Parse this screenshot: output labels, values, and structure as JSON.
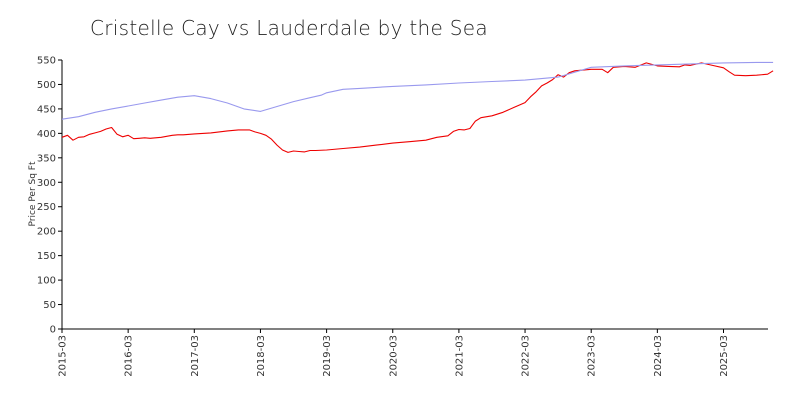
{
  "chart_data": {
    "type": "line",
    "title": "Cristelle Cay vs Lauderdale by the Sea",
    "xlabel": "",
    "ylabel": "Price Per Sq Ft",
    "ylim": [
      0,
      550
    ],
    "y_ticks": [
      0,
      50,
      100,
      150,
      200,
      250,
      300,
      350,
      400,
      450,
      500,
      550
    ],
    "x_ticks": [
      "2015-03",
      "2016-03",
      "2017-03",
      "2018-03",
      "2019-03",
      "2020-03",
      "2021-03",
      "2022-03",
      "2023-03",
      "2024-03",
      "2025-03"
    ],
    "x_range": [
      "2015-03",
      "2025-12"
    ],
    "grid": false,
    "legend": "none",
    "series": [
      {
        "color": "#ee0000",
        "points": [
          [
            "2015-03",
            392
          ],
          [
            "2015-04",
            396
          ],
          [
            "2015-05",
            386
          ],
          [
            "2015-06",
            392
          ],
          [
            "2015-07",
            393
          ],
          [
            "2015-08",
            398
          ],
          [
            "2015-09",
            401
          ],
          [
            "2015-10",
            404
          ],
          [
            "2015-11",
            409
          ],
          [
            "2015-12",
            412
          ],
          [
            "2016-01",
            398
          ],
          [
            "2016-02",
            393
          ],
          [
            "2016-03",
            396
          ],
          [
            "2016-04",
            389
          ],
          [
            "2016-05",
            390
          ],
          [
            "2016-06",
            391
          ],
          [
            "2016-07",
            390
          ],
          [
            "2016-08",
            391
          ],
          [
            "2016-09",
            392
          ],
          [
            "2016-10",
            394
          ],
          [
            "2016-11",
            396
          ],
          [
            "2016-12",
            397
          ],
          [
            "2017-01",
            397
          ],
          [
            "2017-03",
            399
          ],
          [
            "2017-06",
            401
          ],
          [
            "2017-09",
            405
          ],
          [
            "2017-11",
            407
          ],
          [
            "2018-01",
            407
          ],
          [
            "2018-02",
            403
          ],
          [
            "2018-03",
            400
          ],
          [
            "2018-04",
            396
          ],
          [
            "2018-05",
            388
          ],
          [
            "2018-06",
            376
          ],
          [
            "2018-07",
            366
          ],
          [
            "2018-08",
            361
          ],
          [
            "2018-09",
            364
          ],
          [
            "2018-10",
            363
          ],
          [
            "2018-11",
            362
          ],
          [
            "2018-12",
            365
          ],
          [
            "2019-01",
            365
          ],
          [
            "2019-03",
            366
          ],
          [
            "2019-06",
            369
          ],
          [
            "2019-09",
            372
          ],
          [
            "2019-12",
            376
          ],
          [
            "2020-03",
            380
          ],
          [
            "2020-06",
            383
          ],
          [
            "2020-09",
            386
          ],
          [
            "2020-11",
            392
          ],
          [
            "2021-01",
            395
          ],
          [
            "2021-02",
            404
          ],
          [
            "2021-03",
            408
          ],
          [
            "2021-04",
            407
          ],
          [
            "2021-05",
            410
          ],
          [
            "2021-06",
            425
          ],
          [
            "2021-07",
            432
          ],
          [
            "2021-09",
            436
          ],
          [
            "2021-11",
            443
          ],
          [
            "2022-01",
            453
          ],
          [
            "2022-02",
            458
          ],
          [
            "2022-03",
            463
          ],
          [
            "2022-04",
            475
          ],
          [
            "2022-05",
            485
          ],
          [
            "2022-06",
            497
          ],
          [
            "2022-07",
            503
          ],
          [
            "2022-08",
            510
          ],
          [
            "2022-09",
            520
          ],
          [
            "2022-10",
            515
          ],
          [
            "2022-11",
            524
          ],
          [
            "2022-12",
            528
          ],
          [
            "2023-02",
            530
          ],
          [
            "2023-03",
            531
          ],
          [
            "2023-05",
            531
          ],
          [
            "2023-06",
            524
          ],
          [
            "2023-07",
            535
          ],
          [
            "2023-09",
            537
          ],
          [
            "2023-11",
            535
          ],
          [
            "2024-01",
            544
          ],
          [
            "2024-03",
            538
          ],
          [
            "2024-05",
            537
          ],
          [
            "2024-07",
            536
          ],
          [
            "2024-08",
            540
          ],
          [
            "2024-09",
            539
          ],
          [
            "2024-11",
            544
          ],
          [
            "2025-01",
            539
          ],
          [
            "2025-03",
            534
          ],
          [
            "2025-04",
            526
          ],
          [
            "2025-05",
            519
          ],
          [
            "2025-07",
            518
          ],
          [
            "2025-09",
            519
          ],
          [
            "2025-11",
            521
          ],
          [
            "2025-12",
            528
          ]
        ]
      },
      {
        "color": "#9999ee",
        "points": [
          [
            "2015-03",
            429
          ],
          [
            "2015-06",
            434
          ],
          [
            "2015-09",
            443
          ],
          [
            "2015-12",
            450
          ],
          [
            "2016-03",
            456
          ],
          [
            "2016-06",
            462
          ],
          [
            "2016-09",
            468
          ],
          [
            "2016-12",
            474
          ],
          [
            "2017-03",
            477
          ],
          [
            "2017-06",
            471
          ],
          [
            "2017-09",
            462
          ],
          [
            "2017-12",
            450
          ],
          [
            "2018-03",
            445
          ],
          [
            "2018-06",
            455
          ],
          [
            "2018-09",
            465
          ],
          [
            "2018-12",
            473
          ],
          [
            "2019-02",
            478
          ],
          [
            "2019-03",
            483
          ],
          [
            "2019-06",
            490
          ],
          [
            "2019-09",
            492
          ],
          [
            "2019-12",
            494
          ],
          [
            "2020-03",
            496
          ],
          [
            "2020-09",
            499
          ],
          [
            "2021-03",
            503
          ],
          [
            "2021-09",
            506
          ],
          [
            "2022-03",
            509
          ],
          [
            "2022-09",
            515
          ],
          [
            "2023-03",
            535
          ],
          [
            "2023-09",
            538
          ],
          [
            "2024-03",
            540
          ],
          [
            "2024-09",
            542
          ],
          [
            "2025-03",
            544
          ],
          [
            "2025-09",
            545
          ],
          [
            "2025-12",
            545
          ]
        ]
      }
    ]
  }
}
